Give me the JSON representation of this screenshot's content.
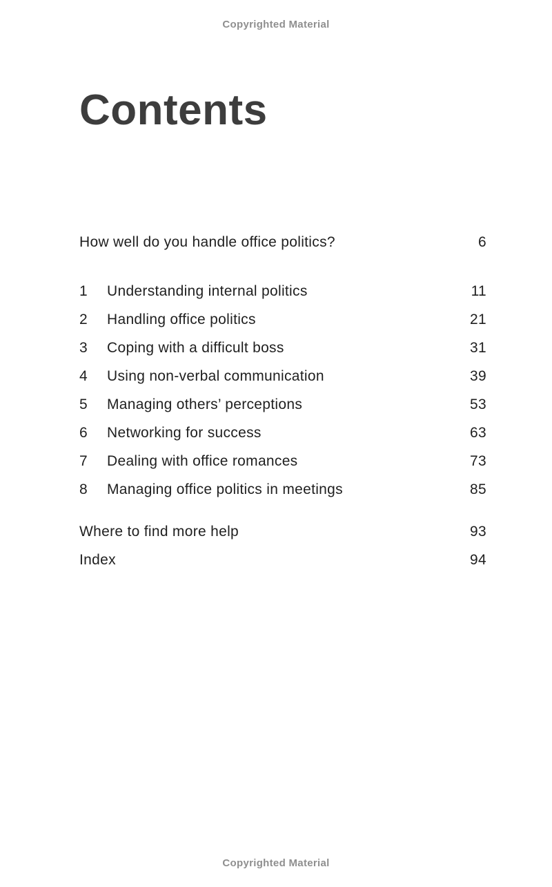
{
  "page": {
    "copyright_top": "Copyrighted Material",
    "copyright_bottom": "Copyrighted Material",
    "title": "Contents"
  },
  "toc": {
    "intro": {
      "label": "How well do you handle office politics?",
      "page": "6"
    },
    "chapters": [
      {
        "num": "1",
        "label": "Understanding internal politics",
        "page": "11"
      },
      {
        "num": "2",
        "label": "Handling office politics",
        "page": "21"
      },
      {
        "num": "3",
        "label": "Coping with a difficult boss",
        "page": "31"
      },
      {
        "num": "4",
        "label": "Using non-verbal communication",
        "page": "39"
      },
      {
        "num": "5",
        "label": "Managing others’ perceptions",
        "page": "53"
      },
      {
        "num": "6",
        "label": "Networking for success",
        "page": "63"
      },
      {
        "num": "7",
        "label": "Dealing with office romances",
        "page": "73"
      },
      {
        "num": "8",
        "label": "Managing office politics in meetings",
        "page": "85"
      }
    ],
    "end_matter": [
      {
        "label": "Where to find more help",
        "page": "93"
      },
      {
        "label": "Index",
        "page": "94"
      }
    ]
  },
  "colors": {
    "text": "#1f1f1f",
    "title": "#3d3d3d",
    "copyright": "#8f8f8f",
    "background": "#ffffff"
  }
}
